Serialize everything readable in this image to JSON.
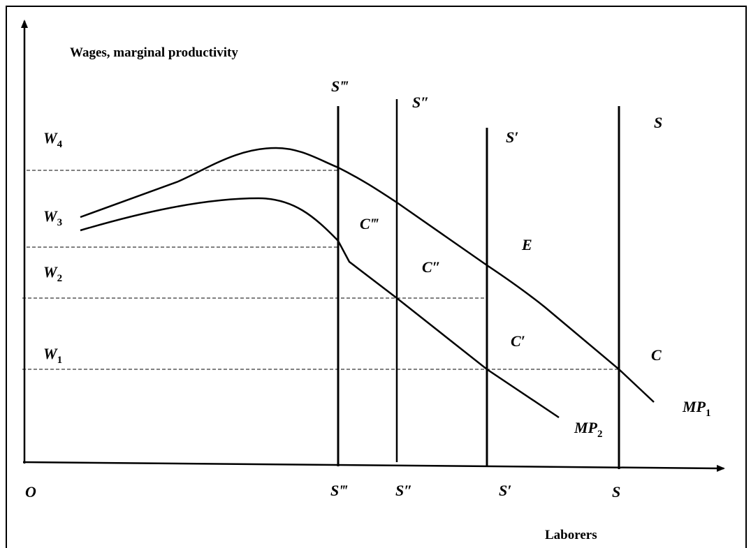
{
  "title": "Wages, marginal productivity",
  "x_axis_label": "Laborers",
  "origin": "O",
  "wage_levels": [
    {
      "symbol": "W",
      "sub": "4"
    },
    {
      "symbol": "W",
      "sub": "3"
    },
    {
      "symbol": "W",
      "sub": "2"
    },
    {
      "symbol": "W",
      "sub": "1"
    }
  ],
  "supply_top": [
    "S‴",
    "S″",
    "S′",
    "S"
  ],
  "supply_bottom": [
    "S‴",
    "S″",
    "S′",
    "S"
  ],
  "points": [
    "C‴",
    "C″",
    "C′",
    "C",
    "E"
  ],
  "curves": [
    {
      "symbol": "MP",
      "sub": "1"
    },
    {
      "symbol": "MP",
      "sub": "2"
    }
  ]
}
